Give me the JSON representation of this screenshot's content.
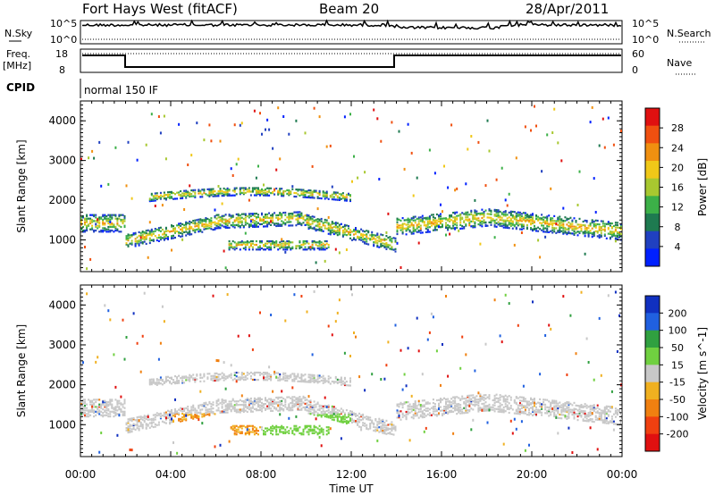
{
  "header": {
    "title": "Fort Hays West (fitACF)",
    "beam": "Beam 20",
    "date": "28/Apr/2011"
  },
  "top_panels": {
    "nsky_label": "N.Sky",
    "nsearch_label": "N.Search",
    "nsky_ticks": [
      "10^5",
      "10^0"
    ],
    "nsearch_ticks": [
      "10^5",
      "10^0"
    ],
    "freq_label": "Freq.",
    "freq_unit": "[MHz]",
    "freq_ticks": [
      "18",
      "8"
    ],
    "nave_label": "Nave",
    "nave_ticks": [
      "60",
      "0"
    ],
    "cpid_label": "CPID",
    "cpid_value": "normal 150 IF"
  },
  "chart_data": [
    {
      "type": "heatmap",
      "name": "power",
      "ylabel": "Slant Range [km]",
      "ylim": [
        200,
        4500
      ],
      "y_ticks": [
        1000,
        2000,
        3000,
        4000
      ],
      "xlim": [
        0,
        24
      ],
      "colorbar": {
        "label": "Power [dB]",
        "ticks": [
          "4",
          "8",
          "12",
          "16",
          "20",
          "24",
          "28"
        ],
        "colors": [
          "#0020ff",
          "#2040c0",
          "#1e7a50",
          "#3cb048",
          "#a8c830",
          "#f0c818",
          "#f09010",
          "#f05010",
          "#e01010"
        ]
      }
    },
    {
      "type": "heatmap",
      "name": "velocity",
      "ylabel": "Slant Range [km]",
      "ylim": [
        200,
        4500
      ],
      "y_ticks": [
        1000,
        2000,
        3000,
        4000
      ],
      "xlim": [
        0,
        24
      ],
      "colorbar": {
        "label": "Velocity [m s^-1]",
        "ticks": [
          "200",
          "100",
          "50",
          "15",
          "-15",
          "-50",
          "-100",
          "-200"
        ],
        "colors": [
          "#1030c0",
          "#2060e0",
          "#30a040",
          "#70d040",
          "#c8c8c8",
          "#f0b020",
          "#f08010",
          "#f04010",
          "#e01010"
        ]
      }
    }
  ],
  "x_axis": {
    "ticks": [
      "00:00",
      "04:00",
      "08:00",
      "12:00",
      "16:00",
      "20:00",
      "00:00"
    ],
    "label": "Time UT"
  }
}
